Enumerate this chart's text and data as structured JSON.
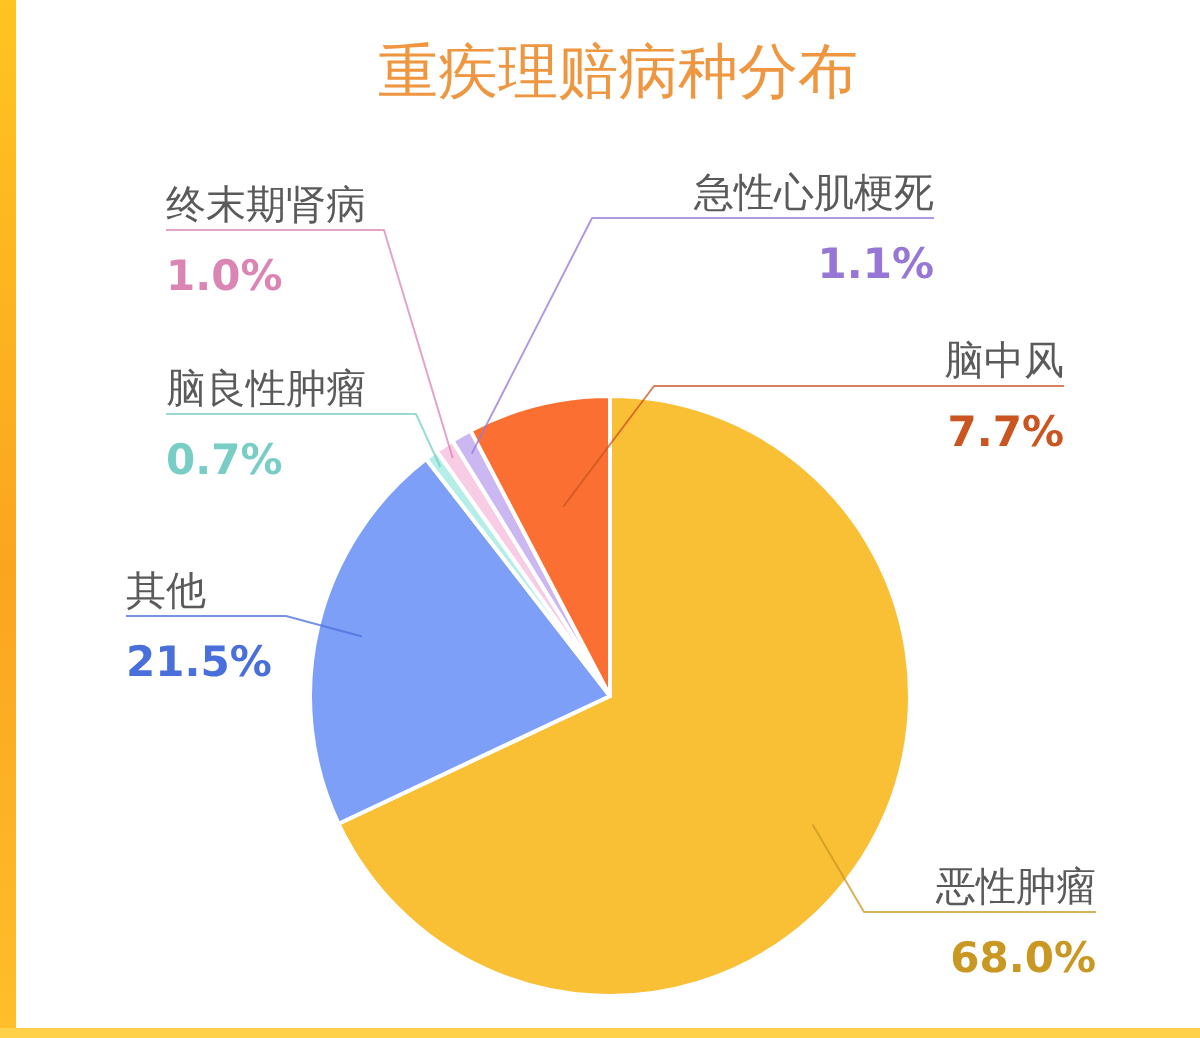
{
  "chart_data": {
    "type": "pie",
    "title": "重疾理赔病种分布",
    "categories": [
      "恶性肿瘤",
      "其他",
      "脑良性肿瘤",
      "终末期肾病",
      "急性心肌梗死",
      "脑中风"
    ],
    "values": [
      68.0,
      21.5,
      0.7,
      1.0,
      1.1,
      7.7
    ],
    "colors": [
      "#f9bf35",
      "#7e9ff7",
      "#b5eee8",
      "#f7cce4",
      "#cbb8f3",
      "#fb7032"
    ],
    "value_labels": [
      "68.0%",
      "21.5%",
      "0.7%",
      "1.0%",
      "1.1%",
      "7.7%"
    ]
  }
}
